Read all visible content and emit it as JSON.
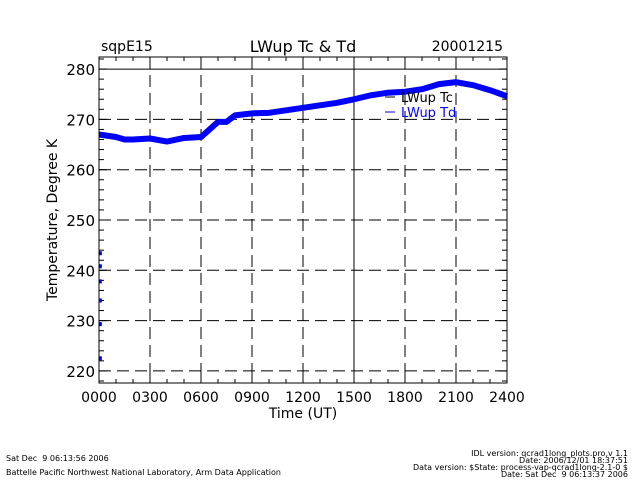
{
  "header": {
    "site": "sqpE15",
    "title": "LWup Tc & Td",
    "date": "20001215"
  },
  "footer": {
    "left": [
      "Sat Dec  9 06:13:56 2006",
      "Battelle Pacific Northwest National Laboratory, Arm Data Application"
    ],
    "right": [
      "IDL version: qcrad1long_plots.pro,v 1.1",
      "Date: 2006/12/01 18:37:51",
      "Data version: $State: process-vap-qcrad1long-2.1-0 $",
      "Date: Sat Dec  9 06:13:37 2006"
    ]
  },
  "chart_data": {
    "type": "line",
    "title": "LWup Tc & Td",
    "xlabel": "Time (UT)",
    "ylabel": "Temperature, Degree K",
    "xlim": [
      0,
      24
    ],
    "ylim": [
      217.6,
      282.4
    ],
    "xticks": [
      0,
      3,
      6,
      9,
      12,
      15,
      18,
      21,
      24
    ],
    "xtick_labels": [
      "0000",
      "0300",
      "0600",
      "0900",
      "1200",
      "1500",
      "1800",
      "2100",
      "2400"
    ],
    "yticks": [
      220,
      230,
      240,
      250,
      260,
      270,
      280
    ],
    "ytick_labels": [
      "220",
      "230",
      "240",
      "250",
      "260",
      "270",
      "280"
    ],
    "grid": true,
    "legend": "top-right",
    "colors": {
      "Tc": "#000000",
      "Td": "#0000ff"
    },
    "x": [
      0,
      1,
      1.5,
      2,
      3,
      4,
      5,
      6,
      6.5,
      7,
      7.5,
      8,
      9,
      10,
      11,
      12,
      13,
      14,
      15,
      16,
      17,
      18,
      19,
      20,
      21,
      22,
      23,
      24
    ],
    "series": [
      {
        "name": "LWup Tc",
        "values": [
          267.0,
          266.5,
          266.0,
          266.0,
          266.2,
          265.6,
          266.3,
          266.5,
          268.0,
          269.5,
          269.5,
          270.8,
          271.2,
          271.3,
          271.8,
          272.3,
          272.8,
          273.3,
          274.0,
          274.8,
          275.3,
          275.5,
          276.0,
          277.0,
          277.4,
          276.8,
          275.8,
          274.6
        ]
      },
      {
        "name": "LWup Td",
        "values": [
          267.0,
          266.5,
          266.0,
          266.0,
          266.2,
          265.6,
          266.3,
          266.5,
          268.0,
          269.5,
          269.5,
          270.8,
          271.2,
          271.3,
          271.8,
          272.3,
          272.8,
          273.3,
          274.0,
          274.8,
          275.3,
          275.5,
          276.0,
          277.0,
          277.4,
          276.8,
          275.8,
          274.6
        ],
        "extra_points": {
          "x": [
            0.05,
            0.05,
            0.05,
            0.05,
            0.05,
            0.05
          ],
          "y": [
            243.4,
            240.8,
            237.8,
            234.0,
            229.3,
            222.5
          ]
        }
      }
    ]
  }
}
